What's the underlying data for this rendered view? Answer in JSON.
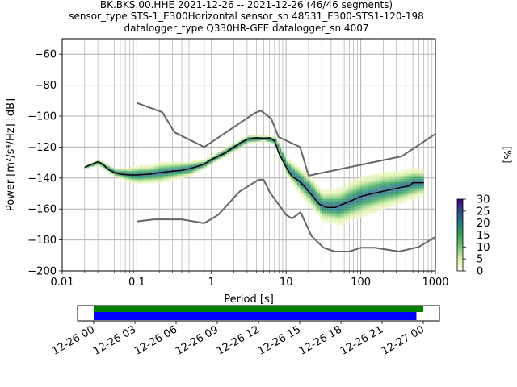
{
  "chart_data": {
    "type": "heatmap",
    "title_lines": [
      "BK.BKS.00.HHE   2021-12-26 -- 2021-12-26  (46/46 segments)",
      "sensor_type STS-1_E300Horizontal sensor_sn 48531_E300-STS1-120-198",
      "datalogger_type Q330HR-GFE datalogger_sn 4007"
    ],
    "xlabel": "Period [s]",
    "ylabel": "Power [m²/s⁴/Hz] [dB]",
    "x_scale": "log",
    "xlim": [
      0.01,
      1000
    ],
    "ylim": [
      -200,
      -50
    ],
    "x_ticks": [
      "0.01",
      "0.1",
      "1",
      "10",
      "100",
      "1000"
    ],
    "y_ticks": [
      "-60",
      "-80",
      "-100",
      "-120",
      "-140",
      "-160",
      "-180",
      "-200"
    ],
    "grid": true,
    "colorbar": {
      "label": "[%]",
      "ticks": [
        "0",
        "5",
        "10",
        "15",
        "20",
        "25",
        "30"
      ],
      "range": [
        0,
        30
      ],
      "colors": [
        "#ffffe5",
        "#d9f0a3",
        "#78c679",
        "#31a354",
        "#1d7a80",
        "#2c4a8a",
        "#3f007d"
      ]
    },
    "series": [
      {
        "name": "mode",
        "color": "#000000",
        "points": [
          [
            0.02,
            -133
          ],
          [
            0.025,
            -131
          ],
          [
            0.03,
            -129.5
          ],
          [
            0.035,
            -131
          ],
          [
            0.04,
            -134
          ],
          [
            0.05,
            -136.5
          ],
          [
            0.06,
            -137.5
          ],
          [
            0.08,
            -138
          ],
          [
            0.1,
            -138
          ],
          [
            0.15,
            -137.5
          ],
          [
            0.2,
            -136.5
          ],
          [
            0.3,
            -135.5
          ],
          [
            0.4,
            -135
          ],
          [
            0.5,
            -134
          ],
          [
            0.6,
            -133
          ],
          [
            0.8,
            -131
          ],
          [
            1,
            -128
          ],
          [
            1.5,
            -124
          ],
          [
            2,
            -120
          ],
          [
            2.5,
            -117
          ],
          [
            3,
            -115
          ],
          [
            4,
            -114
          ],
          [
            5,
            -114.5
          ],
          [
            6,
            -114
          ],
          [
            7,
            -116
          ],
          [
            8,
            -124
          ],
          [
            10,
            -133
          ],
          [
            12,
            -139
          ],
          [
            15,
            -142
          ],
          [
            18,
            -146
          ],
          [
            22,
            -151
          ],
          [
            28,
            -157
          ],
          [
            35,
            -159
          ],
          [
            45,
            -159
          ],
          [
            60,
            -156.5
          ],
          [
            80,
            -154
          ],
          [
            100,
            -152
          ],
          [
            130,
            -150.5
          ],
          [
            180,
            -149
          ],
          [
            250,
            -147.5
          ],
          [
            350,
            -146
          ],
          [
            450,
            -145
          ],
          [
            500,
            -143
          ],
          [
            700,
            -143
          ]
        ]
      },
      {
        "name": "high noise model",
        "color": "#666666",
        "points": [
          [
            0.1,
            -91.5
          ],
          [
            0.22,
            -97.5
          ],
          [
            0.32,
            -110.5
          ],
          [
            0.8,
            -120
          ],
          [
            3.8,
            -98
          ],
          [
            4.6,
            -96.5
          ],
          [
            6.3,
            -101.5
          ],
          [
            7.9,
            -113.5
          ],
          [
            15.4,
            -120
          ],
          [
            20,
            -138.5
          ],
          [
            354,
            -126
          ],
          [
            1000,
            -111.5
          ]
        ]
      },
      {
        "name": "low noise model",
        "color": "#666666",
        "points": [
          [
            0.1,
            -168
          ],
          [
            0.17,
            -166.7
          ],
          [
            0.4,
            -166.7
          ],
          [
            0.8,
            -169.2
          ],
          [
            1.24,
            -163.7
          ],
          [
            2.4,
            -148.6
          ],
          [
            4.3,
            -141.1
          ],
          [
            5,
            -141.1
          ],
          [
            6,
            -149
          ],
          [
            10,
            -163.8
          ],
          [
            12,
            -166.2
          ],
          [
            15.6,
            -162.1
          ],
          [
            21.9,
            -177.5
          ],
          [
            31.6,
            -185
          ],
          [
            45,
            -187.5
          ],
          [
            70,
            -187.5
          ],
          [
            101,
            -185
          ],
          [
            154,
            -185
          ],
          [
            328,
            -187.5
          ],
          [
            600,
            -184.5
          ],
          [
            1000,
            -178
          ]
        ]
      }
    ],
    "density_band": {
      "periods": [
        0.02,
        0.03,
        0.05,
        0.08,
        0.1,
        0.15,
        0.2,
        0.3,
        0.5,
        0.8,
        1,
        2,
        3,
        5,
        7,
        10,
        15,
        20,
        30,
        50,
        80,
        100,
        200,
        300,
        500,
        700
      ],
      "center": [
        -133,
        -130,
        -136.5,
        -138,
        -138,
        -137.5,
        -136.5,
        -135.5,
        -134,
        -131,
        -128,
        -120,
        -115,
        -114.5,
        -116,
        -133,
        -142,
        -148,
        -158,
        -158.5,
        -154,
        -152,
        -148,
        -146.5,
        -143.5,
        -143
      ],
      "spread": [
        1,
        2,
        3,
        5,
        6,
        6,
        7,
        6,
        5,
        3,
        3,
        3,
        3,
        2,
        3,
        6,
        9,
        10,
        10,
        12,
        13,
        13,
        12,
        11,
        10,
        8
      ]
    },
    "time_axis": {
      "ticks": [
        "12-26 00",
        "12-26 03",
        "12-26 06",
        "12-26 09",
        "12-26 12",
        "12-26 15",
        "12-26 18",
        "12-26 21",
        "12-27 00"
      ],
      "bars": [
        {
          "name": "data",
          "color": "#008000",
          "start_hour": 0,
          "end_hour": 24.0
        },
        {
          "name": "used",
          "color": "#0000ff",
          "start_hour": 0,
          "end_hour": 23.5
        }
      ]
    }
  }
}
